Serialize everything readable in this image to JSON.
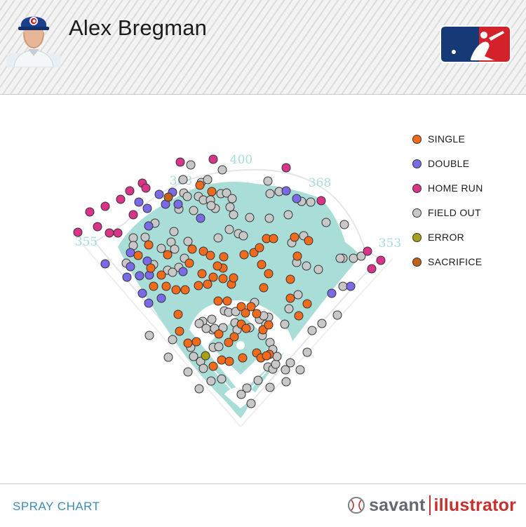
{
  "header": {
    "player_name": "Alex Bregman",
    "avatar_icon": "player-headshot-icon",
    "logo_icon": "mlb-logo-icon"
  },
  "legend": {
    "items": [
      {
        "label": "SINGLE",
        "color": "#f26a1b"
      },
      {
        "label": "DOUBLE",
        "color": "#7b6ae8"
      },
      {
        "label": "HOME RUN",
        "color": "#d9338a"
      },
      {
        "label": "FIELD OUT",
        "color": "#c8c8c8"
      },
      {
        "label": "ERROR",
        "color": "#a8a016"
      },
      {
        "label": "SACRIFICE",
        "color": "#c0621a"
      }
    ]
  },
  "footer": {
    "label": "SPRAY CHART",
    "brand_savant": "savant",
    "brand_illustrator": "illustrator",
    "brand_icon": "baseball-icon"
  },
  "chart_data": {
    "type": "scatter",
    "title": "",
    "xlabel": "",
    "ylabel": "",
    "distance_labels": [
      {
        "label": "355",
        "position": "left field line"
      },
      {
        "label": "368",
        "position": "left-center"
      },
      {
        "label": "400",
        "position": "center field"
      },
      {
        "label": "368",
        "position": "right-center"
      },
      {
        "label": "353",
        "position": "right field line"
      }
    ],
    "series": [
      {
        "name": "SINGLE",
        "color": "#f26a1b",
        "points": [
          [
            285,
            264
          ],
          [
            302,
            273
          ],
          [
            197,
            364
          ],
          [
            212,
            349
          ],
          [
            239,
            363
          ],
          [
            215,
            382
          ],
          [
            230,
            392
          ],
          [
            219,
            408
          ],
          [
            237,
            408
          ],
          [
            251,
            413
          ],
          [
            264,
            413
          ],
          [
            283,
            407
          ],
          [
            296,
            405
          ],
          [
            304,
            395
          ],
          [
            318,
            397
          ],
          [
            330,
            405
          ],
          [
            333,
            396
          ],
          [
            318,
            382
          ],
          [
            310,
            379
          ],
          [
            288,
            390
          ],
          [
            270,
            375
          ],
          [
            274,
            355
          ],
          [
            290,
            358
          ],
          [
            300,
            364
          ],
          [
            319,
            366
          ],
          [
            348,
            363
          ],
          [
            362,
            360
          ],
          [
            370,
            353
          ],
          [
            380,
            340
          ],
          [
            390,
            340
          ],
          [
            373,
            377
          ],
          [
            383,
            390
          ],
          [
            376,
            410
          ],
          [
            414,
            398
          ],
          [
            424,
            365
          ],
          [
            420,
            338
          ],
          [
            440,
            343
          ],
          [
            254,
            448
          ],
          [
            256,
            472
          ],
          [
            311,
            429
          ],
          [
            324,
            429
          ],
          [
            344,
            437
          ],
          [
            350,
            446
          ],
          [
            358,
            437
          ],
          [
            366,
            447
          ],
          [
            344,
            462
          ],
          [
            351,
            468
          ],
          [
            334,
            480
          ],
          [
            326,
            488
          ],
          [
            312,
            476
          ],
          [
            280,
            487
          ],
          [
            268,
            489
          ],
          [
            316,
            513
          ],
          [
            327,
            515
          ],
          [
            304,
            522
          ],
          [
            346,
            510
          ],
          [
            366,
            503
          ],
          [
            372,
            510
          ],
          [
            384,
            505
          ],
          [
            380,
            507
          ],
          [
            375,
            470
          ],
          [
            383,
            463
          ],
          [
            438,
            433
          ],
          [
            426,
            450
          ],
          [
            414,
            425
          ]
        ]
      },
      {
        "name": "DOUBLE",
        "color": "#7b6ae8",
        "points": [
          [
            186,
            360
          ],
          [
            181,
            395
          ],
          [
            186,
            380
          ],
          [
            210,
            372
          ],
          [
            213,
            392
          ],
          [
            199,
            393
          ],
          [
            203,
            418
          ],
          [
            212,
            432
          ],
          [
            230,
            425
          ],
          [
            150,
            376
          ],
          [
            198,
            288
          ],
          [
            210,
            297
          ],
          [
            212,
            322
          ],
          [
            227,
            277
          ],
          [
            236,
            291
          ],
          [
            254,
            291
          ],
          [
            246,
            274
          ],
          [
            286,
            311
          ],
          [
            261,
            387
          ],
          [
            408,
            272
          ],
          [
            423,
            283
          ],
          [
            473,
            418
          ],
          [
            500,
            408
          ]
        ]
      },
      {
        "name": "HOME RUN",
        "color": "#d9338a",
        "points": [
          [
            111,
            331
          ],
          [
            128,
            302
          ],
          [
            139,
            323
          ],
          [
            150,
            294
          ],
          [
            156,
            332
          ],
          [
            168,
            332
          ],
          [
            172,
            284
          ],
          [
            185,
            272
          ],
          [
            190,
            306
          ],
          [
            203,
            261
          ],
          [
            208,
            268
          ],
          [
            257,
            231
          ],
          [
            304,
            227
          ],
          [
            408,
            239
          ],
          [
            458,
            286
          ],
          [
            524,
            358
          ],
          [
            530,
            383
          ],
          [
            543,
            371
          ]
        ]
      },
      {
        "name": "FIELD OUT",
        "color": "#c8c8c8",
        "points": [
          [
            272,
            235
          ],
          [
            317,
            242
          ],
          [
            261,
            256
          ],
          [
            287,
            260
          ],
          [
            296,
            256
          ],
          [
            262,
            275
          ],
          [
            267,
            280
          ],
          [
            283,
            280
          ],
          [
            290,
            285
          ],
          [
            300,
            285
          ],
          [
            315,
            276
          ],
          [
            323,
            275
          ],
          [
            331,
            283
          ],
          [
            328,
            295
          ],
          [
            333,
            306
          ],
          [
            356,
            310
          ],
          [
            307,
            297
          ],
          [
            301,
            293
          ],
          [
            255,
            298
          ],
          [
            276,
            300
          ],
          [
            221,
            318
          ],
          [
            207,
            338
          ],
          [
            230,
            354
          ],
          [
            244,
            345
          ],
          [
            249,
            355
          ],
          [
            263,
            368
          ],
          [
            255,
            381
          ],
          [
            239,
            385
          ],
          [
            246,
            388
          ],
          [
            219,
            377
          ],
          [
            180,
            375
          ],
          [
            190,
            339
          ],
          [
            190,
            350
          ],
          [
            248,
            330
          ],
          [
            268,
            344
          ],
          [
            311,
            339
          ],
          [
            327,
            327
          ],
          [
            340,
            333
          ],
          [
            347,
            336
          ],
          [
            384,
            311
          ],
          [
            416,
            346
          ],
          [
            454,
            384
          ],
          [
            437,
            379
          ],
          [
            423,
            374
          ],
          [
            433,
            336
          ],
          [
            382,
            258
          ],
          [
            385,
            276
          ],
          [
            398,
            273
          ],
          [
            430,
            287
          ],
          [
            443,
            288
          ],
          [
            411,
            306
          ],
          [
            465,
            317
          ],
          [
            491,
            320
          ],
          [
            489,
            368
          ],
          [
            485,
            368
          ],
          [
            504,
            368
          ],
          [
            515,
            365
          ],
          [
            489,
            408
          ],
          [
            481,
            449
          ],
          [
            459,
            461
          ],
          [
            445,
            471
          ],
          [
            438,
            502
          ],
          [
            428,
            527
          ],
          [
            414,
            517
          ],
          [
            407,
            527
          ],
          [
            408,
            544
          ],
          [
            385,
            552
          ],
          [
            368,
            542
          ],
          [
            358,
            575
          ],
          [
            344,
            562
          ],
          [
            352,
            553
          ],
          [
            316,
            540
          ],
          [
            301,
            543
          ],
          [
            284,
            554
          ],
          [
            268,
            530
          ],
          [
            240,
            509
          ],
          [
            213,
            478
          ],
          [
            246,
            484
          ],
          [
            272,
            495
          ],
          [
            286,
            515
          ],
          [
            290,
            525
          ],
          [
            276,
            508
          ],
          [
            304,
            495
          ],
          [
            312,
            494
          ],
          [
            303,
            470
          ],
          [
            302,
            455
          ],
          [
            289,
            458
          ],
          [
            284,
            461
          ],
          [
            294,
            468
          ],
          [
            306,
            468
          ],
          [
            318,
            467
          ],
          [
            320,
            443
          ],
          [
            326,
            445
          ],
          [
            336,
            444
          ],
          [
            335,
            460
          ],
          [
            338,
            470
          ],
          [
            356,
            467
          ],
          [
            374,
            478
          ],
          [
            385,
            488
          ],
          [
            379,
            462
          ],
          [
            370,
            455
          ],
          [
            383,
            452
          ],
          [
            406,
            462
          ],
          [
            412,
            440
          ],
          [
            425,
            420
          ],
          [
            363,
            431
          ],
          [
            376,
            450
          ],
          [
            389,
            498
          ],
          [
            382,
            523
          ],
          [
            389,
            526
          ],
          [
            393,
            519
          ],
          [
            395,
            508
          ]
        ]
      },
      {
        "name": "ERROR",
        "color": "#a8a016",
        "points": [
          [
            293,
            507
          ]
        ]
      },
      {
        "name": "SACRIFICE",
        "color": "#c0621a",
        "points": [
          [
            240,
            281
          ]
        ]
      }
    ]
  }
}
